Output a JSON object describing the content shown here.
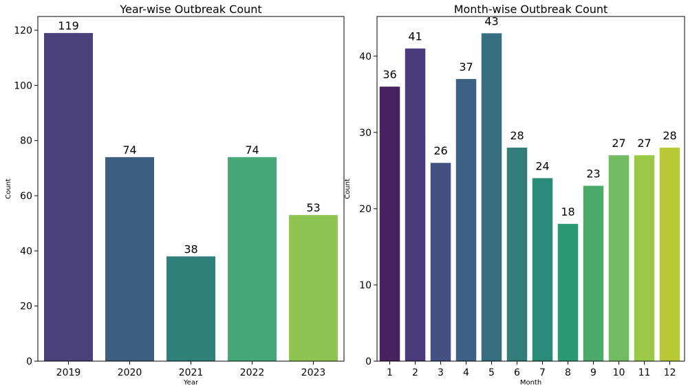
{
  "chart_data": [
    {
      "type": "bar",
      "title": "Year-wise Outbreak Count",
      "xlabel": "Year",
      "ylabel": "Count",
      "categories": [
        "2019",
        "2020",
        "2021",
        "2022",
        "2023"
      ],
      "values": [
        119,
        74,
        38,
        74,
        53
      ],
      "colors": [
        "#48417c",
        "#3d5f7f",
        "#2e8079",
        "#46a876",
        "#8fc453"
      ],
      "ylim": [
        0,
        125
      ],
      "yticks": [
        0,
        20,
        40,
        60,
        80,
        100,
        120
      ],
      "grid": false,
      "legend": false
    },
    {
      "type": "bar",
      "title": "Month-wise Outbreak Count",
      "xlabel": "Month",
      "ylabel": "Count",
      "categories": [
        "1",
        "2",
        "3",
        "4",
        "5",
        "6",
        "7",
        "8",
        "9",
        "10",
        "11",
        "12"
      ],
      "values": [
        36,
        41,
        26,
        37,
        43,
        28,
        24,
        18,
        23,
        27,
        27,
        28
      ],
      "colors": [
        "#45215e",
        "#4a3a7a",
        "#455082",
        "#3d6084",
        "#376e80",
        "#307d7c",
        "#2a8b78",
        "#2b9872",
        "#4cab6b",
        "#71bc62",
        "#99c946",
        "#b8c837"
      ],
      "ylim": [
        0,
        45.2
      ],
      "yticks": [
        0,
        10,
        20,
        30,
        40
      ],
      "grid": false,
      "legend": false
    }
  ]
}
